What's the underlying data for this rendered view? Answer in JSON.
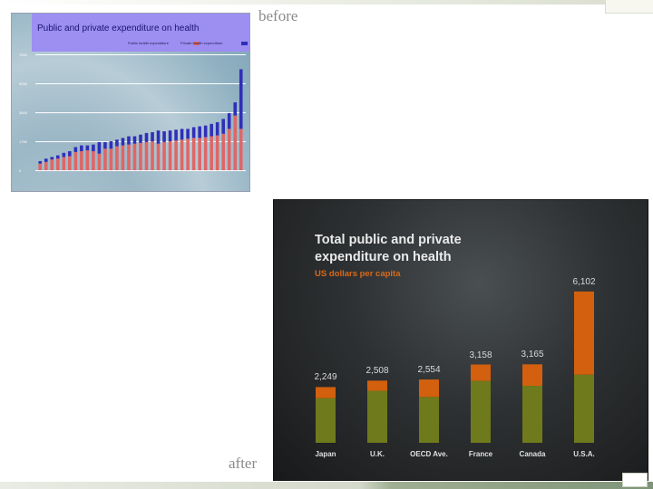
{
  "captions": {
    "before": "before",
    "after": "after"
  },
  "colors": {
    "before_public": "#e06666",
    "before_private": "#2f2fb8",
    "after_public": "#6f7a1c",
    "after_private": "#d2600e"
  },
  "chart_data": [
    {
      "type": "bar",
      "stacked": true,
      "title": "Public and private expenditure on health",
      "legend": [
        "Public health expenditure",
        "Private health expenditure"
      ],
      "legend_position": "top-right",
      "yticks": [
        "0",
        "1750",
        "3500",
        "5250",
        "7000"
      ],
      "ylim": [
        0,
        7000
      ],
      "grid": true,
      "series": [
        {
          "name": "Public health expenditure",
          "values": [
            400,
            500,
            650,
            700,
            800,
            850,
            1100,
            1150,
            1200,
            1150,
            1000,
            1300,
            1300,
            1450,
            1500,
            1550,
            1600,
            1650,
            1700,
            1750,
            1600,
            1700,
            1750,
            1800,
            1850,
            1900,
            1950,
            1950,
            2000,
            2050,
            2100,
            2200,
            2500,
            3300,
            2500
          ]
        },
        {
          "name": "Private health expenditure",
          "values": [
            150,
            200,
            150,
            200,
            250,
            300,
            300,
            350,
            300,
            400,
            700,
            400,
            450,
            400,
            450,
            500,
            450,
            500,
            550,
            550,
            800,
            650,
            650,
            650,
            650,
            600,
            650,
            700,
            700,
            750,
            800,
            900,
            950,
            800,
            3600
          ]
        }
      ]
    },
    {
      "type": "bar",
      "stacked": true,
      "title": "Total public and private expenditure on health",
      "subtitle": "US dollars per capita",
      "categories": [
        "Japan",
        "U.K.",
        "OECD Ave.",
        "France",
        "Canada",
        "U.S.A."
      ],
      "totals": [
        "2,249",
        "2,508",
        "2,554",
        "3,158",
        "3,165",
        "6,102"
      ],
      "ylim": [
        0,
        6500
      ],
      "grid": false,
      "series": [
        {
          "values": [
            1800,
            2100,
            1850,
            2500,
            2300,
            2750
          ]
        },
        {
          "values": [
            449,
            408,
            704,
            658,
            865,
            3352
          ]
        }
      ]
    }
  ]
}
